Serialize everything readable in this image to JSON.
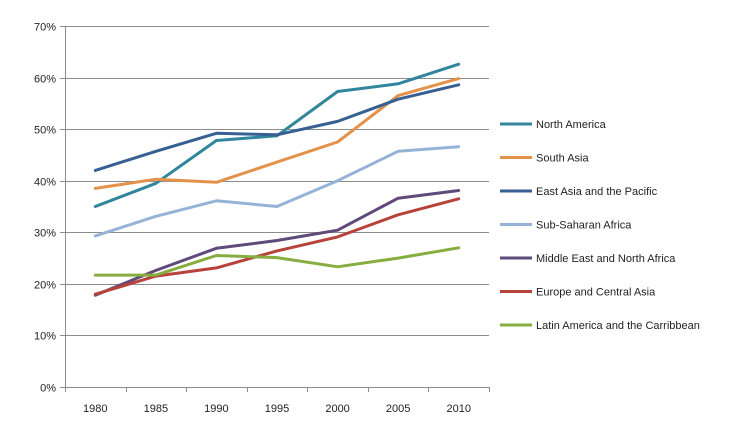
{
  "chart_data": {
    "type": "line",
    "categories": [
      "1980",
      "1985",
      "1990",
      "1995",
      "2000",
      "2005",
      "2010"
    ],
    "ylim": [
      0,
      70
    ],
    "y_ticks": [
      "0%",
      "10%",
      "20%",
      "30%",
      "40%",
      "50%",
      "60%",
      "70%"
    ],
    "y_tick_values": [
      0,
      10,
      20,
      30,
      40,
      50,
      60,
      70
    ],
    "grid": true,
    "legend_position": "right",
    "series": [
      {
        "name": "North America",
        "color": "#31859c",
        "values": [
          35,
          39.5,
          47.8,
          48.7,
          57.3,
          58.8,
          62.6
        ]
      },
      {
        "name": "South Asia",
        "color": "#e4914a",
        "values": [
          38.5,
          40.3,
          39.7,
          43.6,
          47.5,
          56.5,
          59.8
        ]
      },
      {
        "name": "East Asia and the Pacific",
        "color": "#376092",
        "values": [
          42,
          45.7,
          49.2,
          48.9,
          51.5,
          55.8,
          58.6
        ]
      },
      {
        "name": "Sub-Saharan Africa",
        "color": "#95b3d7",
        "values": [
          29.3,
          33.1,
          36.1,
          35,
          40,
          45.7,
          46.6
        ]
      },
      {
        "name": "Middle East and North Africa",
        "color": "#604a7b",
        "values": [
          17.8,
          22.6,
          26.9,
          28.4,
          30.4,
          36.6,
          38.1
        ]
      },
      {
        "name": "Europe and Central Asia",
        "color": "#b7423a",
        "values": [
          18,
          21.5,
          23.1,
          26.4,
          29.1,
          33.4,
          36.5
        ]
      },
      {
        "name": "Latin America and the Carribbean",
        "color": "#86ad3f",
        "values": [
          21.7,
          21.7,
          25.5,
          25.1,
          23.3,
          25,
          27
        ]
      }
    ]
  }
}
